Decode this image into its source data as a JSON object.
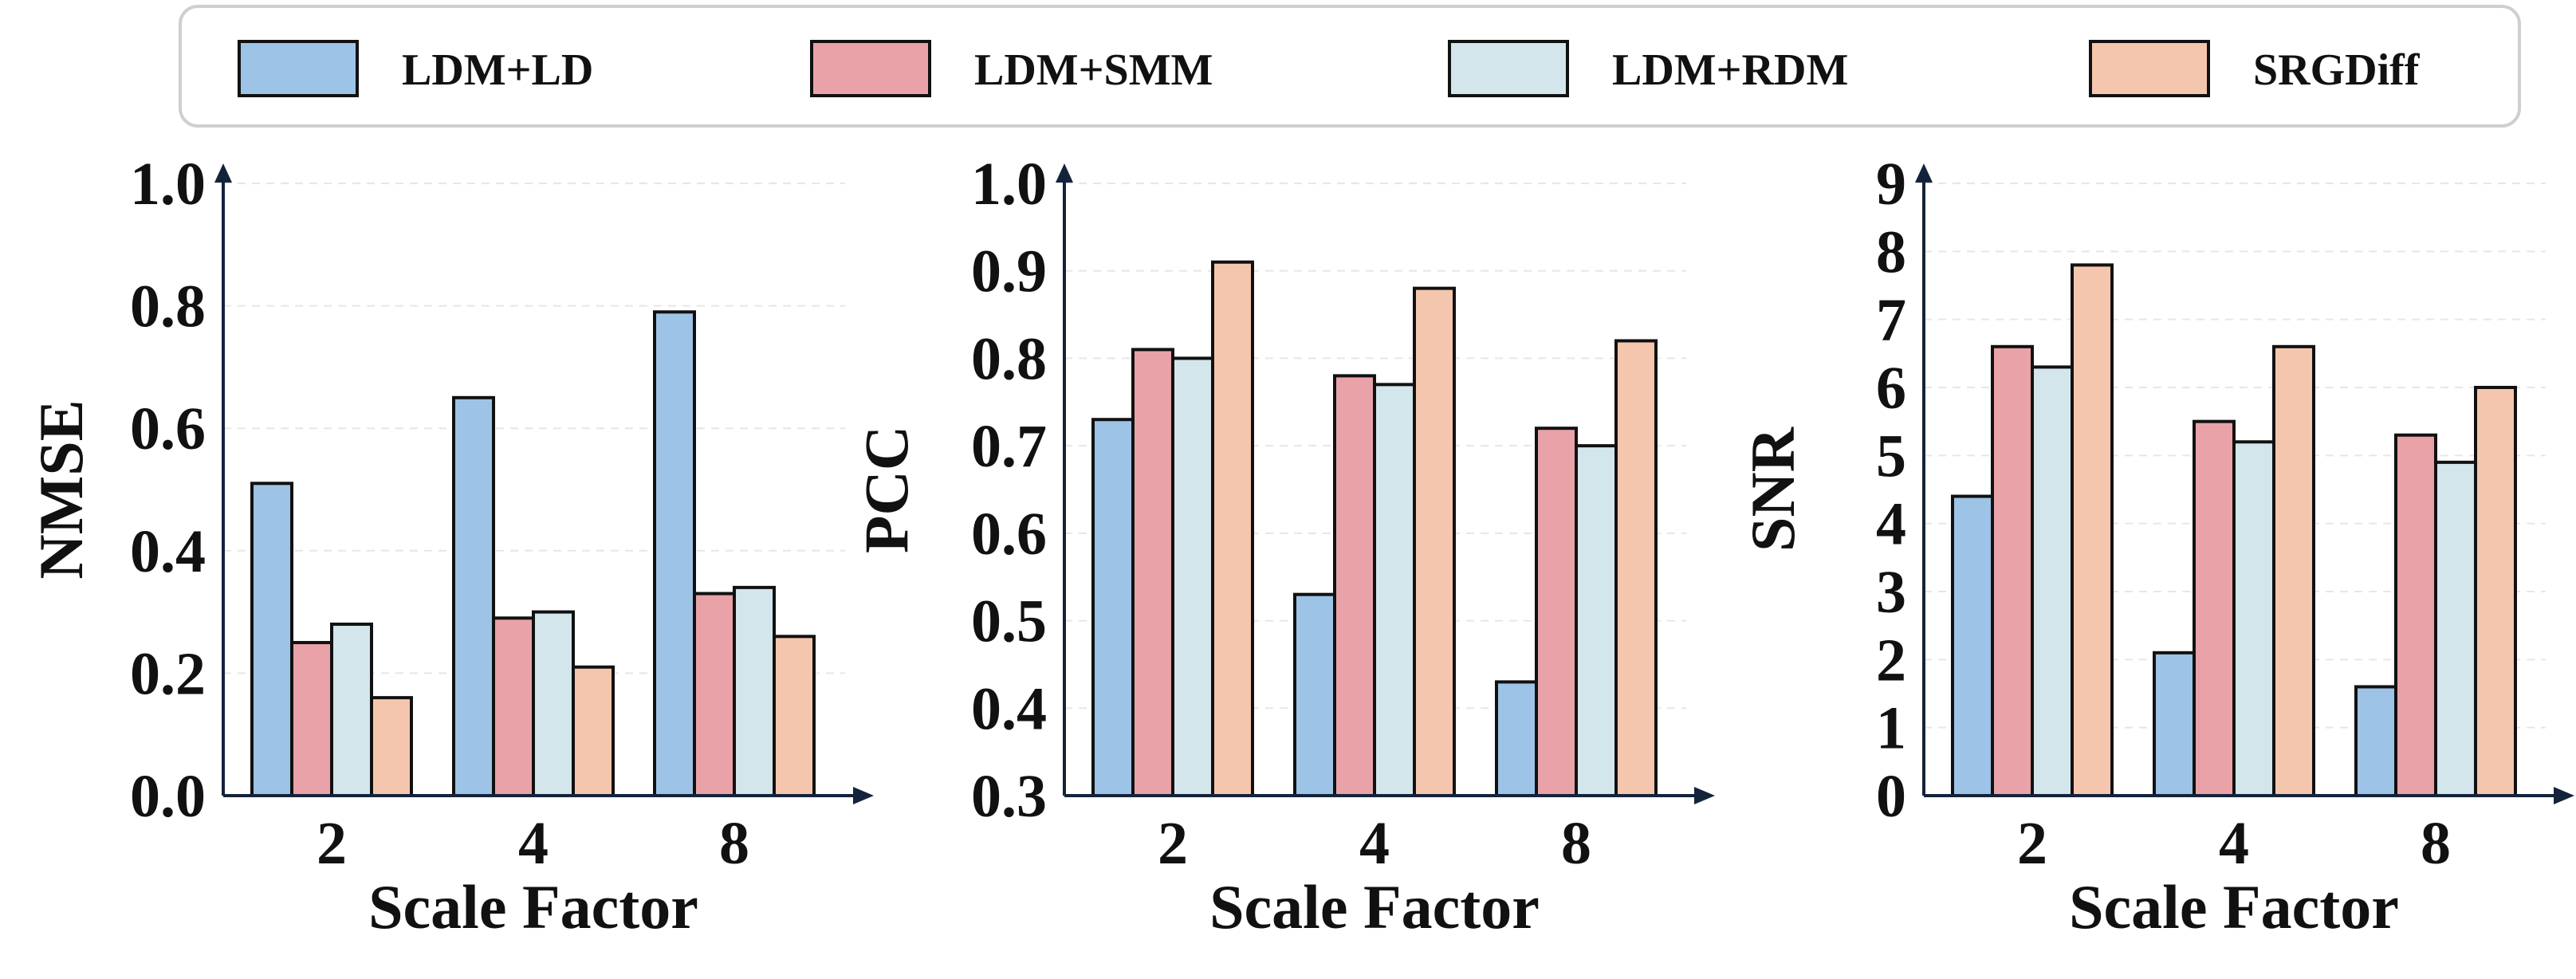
{
  "legend": [
    {
      "label": "LDM+LD",
      "color": "#9dc3e6"
    },
    {
      "label": "LDM+SMM",
      "color": "#e9a2a8"
    },
    {
      "label": "LDM+RDM",
      "color": "#d2e6ec"
    },
    {
      "label": "SRGDiff",
      "color": "#f5c6ae"
    }
  ],
  "chart_data": [
    {
      "type": "bar",
      "categories": [
        "2",
        "4",
        "8"
      ],
      "xlabel": "Scale Factor",
      "ylabel": "NMSE",
      "ylim": [
        0.0,
        1.0
      ],
      "yticks": [
        "0.0",
        "0.2",
        "0.4",
        "0.6",
        "0.8",
        "1.0"
      ],
      "grid": true,
      "series": [
        {
          "name": "LDM+LD",
          "values": [
            0.51,
            0.65,
            0.79
          ]
        },
        {
          "name": "LDM+SMM",
          "values": [
            0.25,
            0.29,
            0.33
          ]
        },
        {
          "name": "LDM+RDM",
          "values": [
            0.28,
            0.3,
            0.34
          ]
        },
        {
          "name": "SRGDiff",
          "values": [
            0.16,
            0.21,
            0.26
          ]
        }
      ]
    },
    {
      "type": "bar",
      "categories": [
        "2",
        "4",
        "8"
      ],
      "xlabel": "Scale Factor",
      "ylabel": "PCC",
      "ylim": [
        0.3,
        1.0
      ],
      "yticks": [
        "0.3",
        "0.4",
        "0.5",
        "0.6",
        "0.7",
        "0.8",
        "0.9",
        "1.0"
      ],
      "grid": true,
      "series": [
        {
          "name": "LDM+LD",
          "values": [
            0.73,
            0.53,
            0.43
          ]
        },
        {
          "name": "LDM+SMM",
          "values": [
            0.81,
            0.78,
            0.72
          ]
        },
        {
          "name": "LDM+RDM",
          "values": [
            0.8,
            0.77,
            0.7
          ]
        },
        {
          "name": "SRGDiff",
          "values": [
            0.91,
            0.88,
            0.82
          ]
        }
      ]
    },
    {
      "type": "bar",
      "categories": [
        "2",
        "4",
        "8"
      ],
      "xlabel": "Scale Factor",
      "ylabel": "SNR",
      "ylim": [
        0,
        9
      ],
      "yticks": [
        "0",
        "1",
        "2",
        "3",
        "4",
        "5",
        "6",
        "7",
        "8",
        "9"
      ],
      "grid": true,
      "series": [
        {
          "name": "LDM+LD",
          "values": [
            4.4,
            2.1,
            1.6
          ]
        },
        {
          "name": "LDM+SMM",
          "values": [
            6.6,
            5.5,
            5.3
          ]
        },
        {
          "name": "LDM+RDM",
          "values": [
            6.3,
            5.2,
            4.9
          ]
        },
        {
          "name": "SRGDiff",
          "values": [
            7.8,
            6.6,
            6.0
          ]
        }
      ]
    }
  ]
}
